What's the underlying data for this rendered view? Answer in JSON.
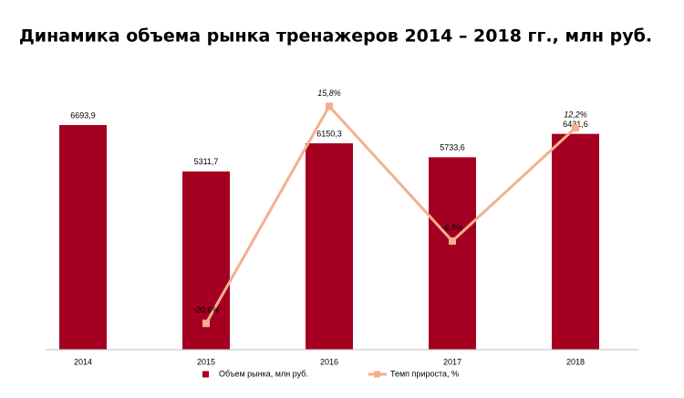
{
  "chart_data": {
    "type": "bar",
    "title": "Динамика объема рынка тренажеров 2014 – 2018 гг., млн руб.",
    "categories": [
      "2014",
      "2015",
      "2016",
      "2017",
      "2018"
    ],
    "ylim": [
      0,
      8000
    ],
    "y2lim": [
      -25,
      20
    ],
    "legend": "bottom",
    "series": [
      {
        "name": "Объем рынка, млн руб.",
        "type": "bar",
        "color": "#a50021",
        "values": [
          6693.9,
          5311.7,
          6150.3,
          5733.6,
          6431.6
        ],
        "value_labels": [
          "6693,9",
          "5311,7",
          "6150,3",
          "5733,6",
          "6431,6"
        ]
      },
      {
        "name": "Темп прироста, %",
        "type": "line",
        "axis": "y2",
        "color": "#f2b08f",
        "values": [
          null,
          -20.6,
          15.8,
          -6.8,
          12.2
        ],
        "value_labels": [
          null,
          "-20,6%",
          "15,8%",
          "-6,8%",
          "12,2%"
        ]
      }
    ]
  }
}
